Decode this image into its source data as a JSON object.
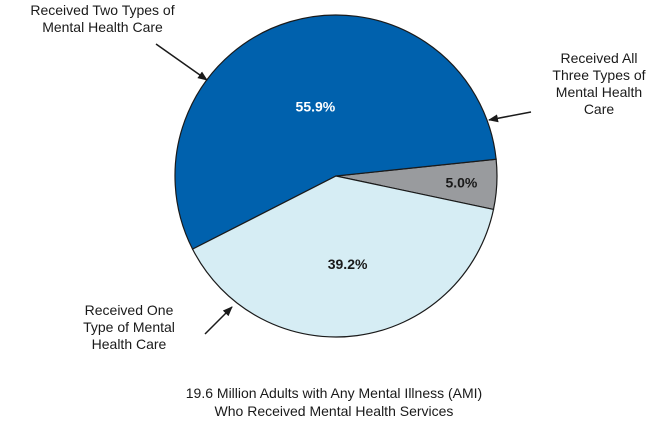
{
  "chart_data": {
    "type": "pie",
    "slices": [
      {
        "label_lines": [
          "Received All",
          "Three Types of",
          "Mental Health",
          "Care"
        ],
        "value": 5.0,
        "value_label": "5.0%",
        "color": "#999b9e",
        "text_color": "#1a1a1a"
      },
      {
        "label_lines": [
          "Received One",
          "Type of Mental",
          "Health Care"
        ],
        "value": 55.9,
        "value_label": "55.9%",
        "color": "#0061ad",
        "text_color": "#ffffff"
      },
      {
        "label_lines": [
          "Received Two Types of",
          "Mental Health Care"
        ],
        "value": 39.2,
        "value_label": "39.2%",
        "color": "#d6edf4",
        "text_color": "#1a1a1a"
      }
    ],
    "caption": [
      "19.6 Million Adults with Any Mental Illness (AMI)",
      "Who Received Mental Health Services"
    ],
    "legend": "callout labels with arrows"
  }
}
